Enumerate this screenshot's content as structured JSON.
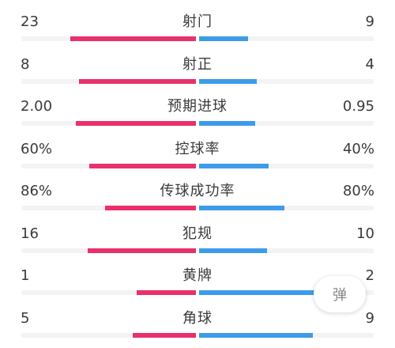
{
  "colors": {
    "home": "#e8316a",
    "away": "#3d9be9",
    "track": "#f3f3f5"
  },
  "stats": [
    {
      "label": "射门",
      "home": "23",
      "away": "9",
      "home_ratio": 0.72,
      "away_ratio": 0.28
    },
    {
      "label": "射正",
      "home": "8",
      "away": "4",
      "home_ratio": 0.67,
      "away_ratio": 0.33
    },
    {
      "label": "预期进球",
      "home": "2.00",
      "away": "0.95",
      "home_ratio": 0.69,
      "away_ratio": 0.32
    },
    {
      "label": "控球率",
      "home": "60%",
      "away": "40%",
      "home_ratio": 0.61,
      "away_ratio": 0.4
    },
    {
      "label": "传球成功率",
      "home": "86%",
      "away": "80%",
      "home_ratio": 0.52,
      "away_ratio": 0.49
    },
    {
      "label": "犯规",
      "home": "16",
      "away": "10",
      "home_ratio": 0.62,
      "away_ratio": 0.39
    },
    {
      "label": "黄牌",
      "home": "1",
      "away": "2",
      "home_ratio": 0.34,
      "away_ratio": 0.66
    },
    {
      "label": "角球",
      "home": "5",
      "away": "9",
      "home_ratio": 0.36,
      "away_ratio": 0.65
    }
  ],
  "danmu": {
    "label": "弹"
  }
}
